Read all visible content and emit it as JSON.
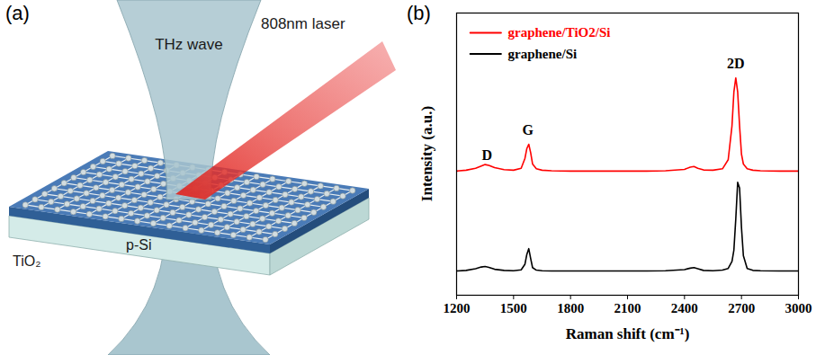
{
  "diagram": {
    "panel_label": "(a)",
    "labels": {
      "beam": "THz wave",
      "laser": "808nm laser",
      "top_layer": "TiO₂",
      "substrate": "p-Si"
    }
  },
  "chart_data": {
    "panel_label": "(b)",
    "type": "line",
    "xlabel": "Raman shift (cm⁻¹)",
    "ylabel": "Intensity (a.u.)",
    "x": [
      1200,
      1250,
      1300,
      1330,
      1350,
      1370,
      1400,
      1450,
      1500,
      1540,
      1560,
      1570,
      1580,
      1590,
      1600,
      1620,
      1650,
      1700,
      1800,
      1900,
      2000,
      2100,
      2200,
      2300,
      2400,
      2430,
      2450,
      2470,
      2500,
      2550,
      2600,
      2630,
      2650,
      2660,
      2670,
      2680,
      2690,
      2700,
      2710,
      2730,
      2760,
      2800,
      2900,
      3000
    ],
    "series": [
      {
        "name": "graphene/TiO2/Si",
        "color": "#ff0000",
        "values": [
          44,
          44.3,
          45,
          45.8,
          46.3,
          46,
          45.2,
          44.5,
          44.3,
          45,
          48.5,
          52,
          53.5,
          50.5,
          46.5,
          44.8,
          44.3,
          44.1,
          44,
          44,
          44,
          44,
          44,
          44.1,
          44.6,
          45.4,
          45.6,
          45,
          44.4,
          44.3,
          44.8,
          48,
          60,
          72,
          77,
          72,
          60,
          50,
          46.5,
          44.8,
          44.3,
          44.1,
          44,
          44
        ]
      },
      {
        "name": "graphene/Si",
        "color": "#000000",
        "values": [
          8.6,
          8.8,
          9.4,
          10,
          10.2,
          9.9,
          9.2,
          8.8,
          8.7,
          9,
          11,
          14.5,
          16.5,
          13,
          9.8,
          8.9,
          8.7,
          8.6,
          8.6,
          8.6,
          8.6,
          8.6,
          8.6,
          8.7,
          9.1,
          9.6,
          9.8,
          9.4,
          8.8,
          8.7,
          8.9,
          9.5,
          12,
          16,
          27,
          40,
          38,
          24,
          14,
          9.5,
          8.8,
          8.7,
          8.6,
          8.6
        ]
      }
    ],
    "xlim": [
      1200,
      3000
    ],
    "xticks": [
      1200,
      1500,
      1800,
      2100,
      2400,
      2700,
      3000
    ],
    "ylim": [
      0,
      100
    ],
    "tick_labels": "x",
    "legend": "top-left",
    "annotations": [
      {
        "text": "D",
        "x": 1360,
        "y": 49.5
      },
      {
        "text": "G",
        "x": 1575,
        "y": 58.5
      },
      {
        "text": "2D",
        "x": 2670,
        "y": 82
      }
    ]
  }
}
